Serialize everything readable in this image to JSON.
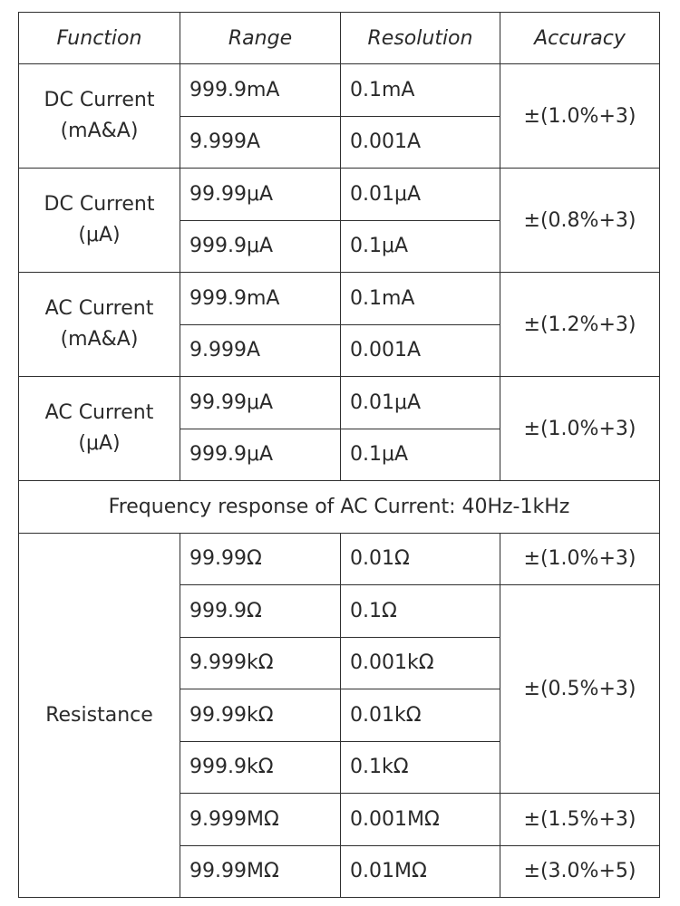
{
  "header": {
    "function": "Function",
    "range": "Range",
    "resolution": "Resolution",
    "accuracy": "Accuracy"
  },
  "groups": [
    {
      "function": "DC Current\n(mA&A)",
      "accuracy": "±(1.0%+3)",
      "rows": [
        {
          "range": "999.9mA",
          "resolution": "0.1mA"
        },
        {
          "range": "9.999A",
          "resolution": "0.001A"
        }
      ]
    },
    {
      "function": "DC Current\n(μA)",
      "accuracy": "±(0.8%+3)",
      "rows": [
        {
          "range": "99.99μA",
          "resolution": "0.01μA"
        },
        {
          "range": "999.9μA",
          "resolution": "0.1μA"
        }
      ]
    },
    {
      "function": "AC Current\n(mA&A)",
      "accuracy": "±(1.2%+3)",
      "rows": [
        {
          "range": "999.9mA",
          "resolution": "0.1mA"
        },
        {
          "range": "9.999A",
          "resolution": "0.001A"
        }
      ]
    },
    {
      "function": "AC Current\n(μA)",
      "accuracy": "±(1.0%+3)",
      "rows": [
        {
          "range": "99.99μA",
          "resolution": "0.01μA"
        },
        {
          "range": "999.9μA",
          "resolution": "0.1μA"
        }
      ]
    }
  ],
  "note": "Frequency response of AC Current: 40Hz-1kHz",
  "resistance": {
    "function": "Resistance",
    "rows": [
      {
        "range": "99.99Ω",
        "resolution": "0.01Ω",
        "accuracy": "±(1.0%+3)"
      },
      {
        "range": "999.9Ω",
        "resolution": "0.1Ω",
        "accuracy": "±(0.5%+3)"
      },
      {
        "range": "9.999kΩ",
        "resolution": "0.001kΩ"
      },
      {
        "range": "99.99kΩ",
        "resolution": "0.01kΩ"
      },
      {
        "range": "999.9kΩ",
        "resolution": "0.1kΩ"
      },
      {
        "range": "9.999MΩ",
        "resolution": "0.001MΩ",
        "accuracy": "±(1.5%+3)"
      },
      {
        "range": "99.99MΩ",
        "resolution": "0.01MΩ",
        "accuracy": "±(3.0%+5)"
      }
    ]
  }
}
